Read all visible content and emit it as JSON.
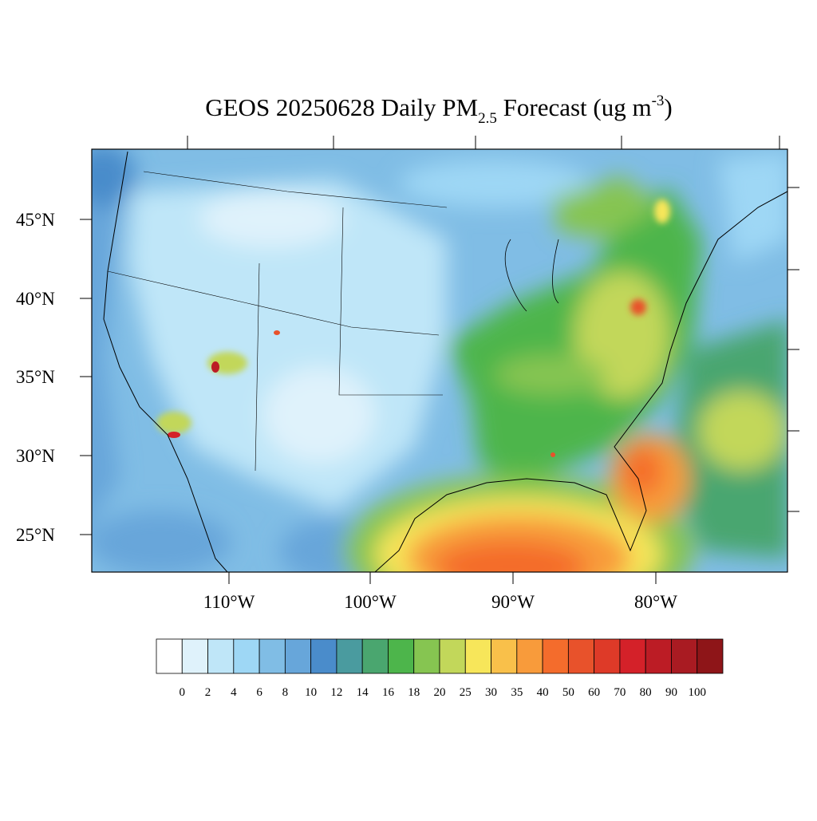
{
  "title": {
    "main": "GEOS 20250628 Daily PM",
    "subscript": "2.5",
    "middle": " Forecast (ug m",
    "superscript": "-3",
    "end": ")"
  },
  "lat_labels": [
    "45°N",
    "40°N",
    "35°N",
    "30°N",
    "25°N"
  ],
  "lon_labels": [
    "110°W",
    "100°W",
    "90°W",
    "80°W"
  ],
  "colorbar": {
    "labels": [
      "0",
      "2",
      "4",
      "6",
      "8",
      "10",
      "12",
      "14",
      "16",
      "18",
      "20",
      "25",
      "30",
      "35",
      "40",
      "50",
      "60",
      "70",
      "80",
      "90",
      "100"
    ],
    "colors": [
      "#ffffff",
      "#dff2fb",
      "#bfe6f8",
      "#9ed7f5",
      "#80bde5",
      "#67a6da",
      "#4a8ccb",
      "#4a9b9f",
      "#4aa66f",
      "#4db54b",
      "#86c551",
      "#c2d75a",
      "#f7e65a",
      "#f9c04a",
      "#f89b3b",
      "#f46c2c",
      "#e8522b",
      "#de3a28",
      "#d42129",
      "#bc1c25",
      "#a91b22",
      "#8e1518"
    ]
  }
}
